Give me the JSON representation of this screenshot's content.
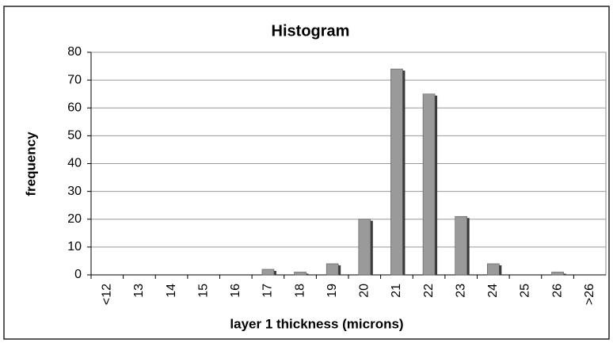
{
  "chart_data": {
    "type": "bar",
    "title": "Histogram",
    "x_label": "layer 1 thickness (microns)",
    "y_label": "frequency",
    "categories": [
      "<12",
      "13",
      "14",
      "15",
      "16",
      "17",
      "18",
      "19",
      "20",
      "21",
      "22",
      "23",
      "24",
      "25",
      "26",
      ">26"
    ],
    "values": [
      0,
      0,
      0,
      0,
      0,
      2,
      1,
      4,
      20,
      74,
      65,
      21,
      4,
      0,
      1,
      0
    ],
    "color": "#9a9a9a",
    "ylim": [
      0,
      80
    ],
    "yticks": [
      0,
      10,
      20,
      30,
      40,
      50,
      60,
      70,
      80
    ],
    "grid": true
  }
}
